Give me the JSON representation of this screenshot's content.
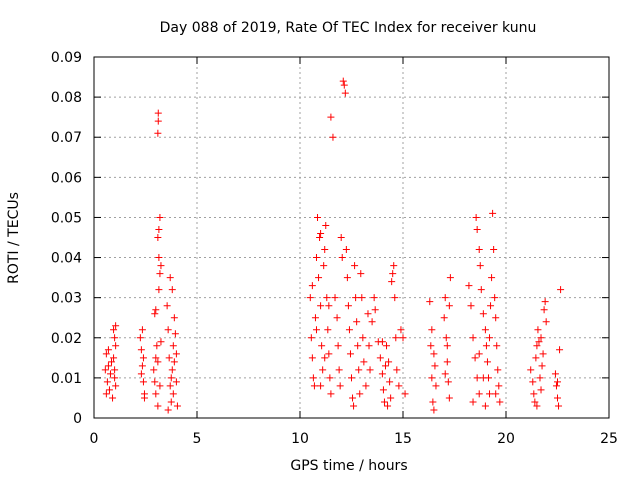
{
  "chart_data": {
    "type": "scatter",
    "title": "Day 088 of 2019, Rate Of TEC Index for receiver kunu",
    "xlabel": "GPS time / hours",
    "ylabel": "ROTI / TECUs",
    "xlim": [
      0,
      25
    ],
    "ylim": [
      0,
      0.09
    ],
    "xticks": [
      0,
      5,
      10,
      15,
      20,
      25
    ],
    "xtick_labels": [
      "0",
      "5",
      "10",
      "15",
      "20",
      "25"
    ],
    "yticks": [
      0,
      0.01,
      0.02,
      0.03,
      0.04,
      0.05,
      0.06,
      0.07,
      0.08,
      0.09
    ],
    "ytick_labels": [
      "0",
      "0.01",
      "0.02",
      "0.03",
      "0.04",
      "0.05",
      "0.06",
      "0.07",
      "0.08",
      "0.09"
    ],
    "grid": true,
    "marker": "+",
    "color": "#ff0000",
    "series": [
      {
        "points": [
          [
            0.55,
            0.012
          ],
          [
            0.6,
            0.016
          ],
          [
            0.65,
            0.009
          ],
          [
            0.7,
            0.013
          ],
          [
            0.75,
            0.007
          ],
          [
            0.8,
            0.011
          ],
          [
            0.85,
            0.014
          ],
          [
            0.6,
            0.006
          ],
          [
            0.7,
            0.017
          ],
          [
            0.95,
            0.022
          ],
          [
            1.0,
            0.02
          ],
          [
            1.05,
            0.018
          ],
          [
            0.95,
            0.015
          ],
          [
            1.0,
            0.012
          ],
          [
            1.05,
            0.008
          ],
          [
            0.9,
            0.005
          ],
          [
            1.0,
            0.01
          ],
          [
            1.05,
            0.023
          ],
          [
            2.25,
            0.02
          ],
          [
            2.3,
            0.017
          ],
          [
            2.35,
            0.013
          ],
          [
            2.4,
            0.009
          ],
          [
            2.45,
            0.006
          ],
          [
            2.3,
            0.011
          ],
          [
            2.4,
            0.015
          ],
          [
            2.35,
            0.022
          ],
          [
            2.45,
            0.005
          ],
          [
            2.9,
            0.012
          ],
          [
            2.95,
            0.009
          ],
          [
            3.0,
            0.015
          ],
          [
            3.05,
            0.018
          ],
          [
            3.0,
            0.027
          ],
          [
            2.95,
            0.026
          ],
          [
            3.1,
            0.045
          ],
          [
            3.15,
            0.047
          ],
          [
            3.1,
            0.071
          ],
          [
            3.12,
            0.074
          ],
          [
            3.12,
            0.076
          ],
          [
            3.2,
            0.05
          ],
          [
            3.15,
            0.04
          ],
          [
            3.2,
            0.036
          ],
          [
            3.25,
            0.038
          ],
          [
            3.15,
            0.032
          ],
          [
            3.0,
            0.006
          ],
          [
            3.1,
            0.003
          ],
          [
            3.2,
            0.008
          ],
          [
            3.25,
            0.019
          ],
          [
            3.1,
            0.014
          ],
          [
            3.55,
            0.028
          ],
          [
            3.6,
            0.022
          ],
          [
            3.65,
            0.015
          ],
          [
            3.7,
            0.008
          ],
          [
            3.75,
            0.004
          ],
          [
            3.8,
            0.012
          ],
          [
            3.85,
            0.018
          ],
          [
            3.9,
            0.025
          ],
          [
            3.95,
            0.021
          ],
          [
            4.0,
            0.009
          ],
          [
            4.05,
            0.003
          ],
          [
            3.7,
            0.035
          ],
          [
            3.8,
            0.032
          ],
          [
            3.9,
            0.014
          ],
          [
            4.0,
            0.016
          ],
          [
            3.6,
            0.002
          ],
          [
            3.75,
            0.01
          ],
          [
            3.85,
            0.006
          ],
          [
            10.5,
            0.03
          ],
          [
            10.55,
            0.02
          ],
          [
            10.6,
            0.015
          ],
          [
            10.65,
            0.01
          ],
          [
            10.7,
            0.008
          ],
          [
            10.75,
            0.025
          ],
          [
            10.8,
            0.04
          ],
          [
            10.85,
            0.05
          ],
          [
            10.9,
            0.035
          ],
          [
            10.95,
            0.045
          ],
          [
            11.0,
            0.028
          ],
          [
            11.05,
            0.018
          ],
          [
            11.1,
            0.012
          ],
          [
            11.15,
            0.038
          ],
          [
            11.2,
            0.042
          ],
          [
            11.25,
            0.048
          ],
          [
            11.3,
            0.03
          ],
          [
            11.35,
            0.022
          ],
          [
            11.4,
            0.016
          ],
          [
            11.45,
            0.01
          ],
          [
            11.5,
            0.006
          ],
          [
            10.6,
            0.033
          ],
          [
            10.8,
            0.022
          ],
          [
            11.0,
            0.008
          ],
          [
            11.2,
            0.015
          ],
          [
            11.4,
            0.028
          ],
          [
            11.0,
            0.046
          ],
          [
            11.5,
            0.075
          ],
          [
            11.6,
            0.07
          ],
          [
            11.7,
            0.03
          ],
          [
            11.8,
            0.025
          ],
          [
            11.85,
            0.018
          ],
          [
            11.9,
            0.012
          ],
          [
            11.95,
            0.008
          ],
          [
            12.0,
            0.045
          ],
          [
            12.05,
            0.04
          ],
          [
            12.1,
            0.084
          ],
          [
            12.15,
            0.083
          ],
          [
            12.2,
            0.081
          ],
          [
            12.25,
            0.042
          ],
          [
            12.3,
            0.035
          ],
          [
            12.35,
            0.028
          ],
          [
            12.4,
            0.022
          ],
          [
            12.45,
            0.016
          ],
          [
            12.5,
            0.01
          ],
          [
            12.55,
            0.005
          ],
          [
            12.6,
            0.003
          ],
          [
            12.65,
            0.038
          ],
          [
            12.7,
            0.03
          ],
          [
            12.75,
            0.024
          ],
          [
            12.8,
            0.018
          ],
          [
            12.85,
            0.012
          ],
          [
            12.9,
            0.006
          ],
          [
            12.95,
            0.036
          ],
          [
            13.0,
            0.03
          ],
          [
            13.05,
            0.02
          ],
          [
            13.1,
            0.014
          ],
          [
            13.2,
            0.008
          ],
          [
            13.3,
            0.026
          ],
          [
            13.35,
            0.018
          ],
          [
            13.4,
            0.012
          ],
          [
            13.5,
            0.024
          ],
          [
            13.6,
            0.03
          ],
          [
            13.65,
            0.027
          ],
          [
            13.8,
            0.019
          ],
          [
            13.9,
            0.015
          ],
          [
            14.0,
            0.011
          ],
          [
            14.05,
            0.007
          ],
          [
            14.1,
            0.004
          ],
          [
            14.15,
            0.013
          ],
          [
            14.2,
            0.018
          ],
          [
            14.3,
            0.014
          ],
          [
            14.35,
            0.009
          ],
          [
            14.4,
            0.005
          ],
          [
            14.45,
            0.034
          ],
          [
            14.5,
            0.036
          ],
          [
            14.55,
            0.038
          ],
          [
            14.6,
            0.03
          ],
          [
            14.65,
            0.02
          ],
          [
            14.7,
            0.012
          ],
          [
            14.8,
            0.008
          ],
          [
            14.9,
            0.022
          ],
          [
            15.0,
            0.02
          ],
          [
            15.1,
            0.006
          ],
          [
            14.0,
            0.019
          ],
          [
            14.25,
            0.003
          ],
          [
            16.3,
            0.029
          ],
          [
            16.35,
            0.018
          ],
          [
            16.4,
            0.01
          ],
          [
            16.45,
            0.004
          ],
          [
            16.5,
            0.002
          ],
          [
            16.55,
            0.013
          ],
          [
            16.6,
            0.008
          ],
          [
            16.4,
            0.022
          ],
          [
            16.5,
            0.016
          ],
          [
            17.0,
            0.025
          ],
          [
            17.05,
            0.03
          ],
          [
            17.1,
            0.02
          ],
          [
            17.15,
            0.014
          ],
          [
            17.2,
            0.009
          ],
          [
            17.25,
            0.005
          ],
          [
            17.3,
            0.035
          ],
          [
            17.05,
            0.011
          ],
          [
            17.15,
            0.018
          ],
          [
            17.25,
            0.028
          ],
          [
            18.2,
            0.033
          ],
          [
            18.3,
            0.028
          ],
          [
            18.4,
            0.02
          ],
          [
            18.5,
            0.015
          ],
          [
            18.6,
            0.01
          ],
          [
            18.7,
            0.006
          ],
          [
            18.55,
            0.05
          ],
          [
            18.6,
            0.047
          ],
          [
            18.7,
            0.042
          ],
          [
            18.75,
            0.038
          ],
          [
            18.8,
            0.032
          ],
          [
            18.9,
            0.026
          ],
          [
            19.0,
            0.022
          ],
          [
            19.05,
            0.018
          ],
          [
            19.1,
            0.014
          ],
          [
            19.15,
            0.01
          ],
          [
            19.2,
            0.006
          ],
          [
            19.25,
            0.028
          ],
          [
            19.3,
            0.035
          ],
          [
            19.35,
            0.051
          ],
          [
            19.4,
            0.042
          ],
          [
            19.45,
            0.03
          ],
          [
            19.5,
            0.025
          ],
          [
            19.55,
            0.018
          ],
          [
            19.6,
            0.012
          ],
          [
            19.65,
            0.008
          ],
          [
            19.7,
            0.004
          ],
          [
            18.4,
            0.004
          ],
          [
            18.9,
            0.01
          ],
          [
            19.2,
            0.02
          ],
          [
            18.7,
            0.016
          ],
          [
            19.0,
            0.003
          ],
          [
            19.5,
            0.006
          ],
          [
            21.2,
            0.012
          ],
          [
            21.3,
            0.009
          ],
          [
            21.35,
            0.006
          ],
          [
            21.4,
            0.004
          ],
          [
            21.45,
            0.015
          ],
          [
            21.5,
            0.018
          ],
          [
            21.55,
            0.022
          ],
          [
            21.6,
            0.019
          ],
          [
            21.65,
            0.01
          ],
          [
            21.7,
            0.007
          ],
          [
            21.75,
            0.013
          ],
          [
            21.8,
            0.016
          ],
          [
            21.85,
            0.027
          ],
          [
            21.9,
            0.029
          ],
          [
            21.95,
            0.024
          ],
          [
            21.5,
            0.003
          ],
          [
            21.7,
            0.02
          ],
          [
            22.4,
            0.011
          ],
          [
            22.45,
            0.008
          ],
          [
            22.5,
            0.005
          ],
          [
            22.55,
            0.003
          ],
          [
            22.6,
            0.017
          ],
          [
            22.65,
            0.032
          ],
          [
            22.5,
            0.009
          ]
        ]
      }
    ]
  }
}
